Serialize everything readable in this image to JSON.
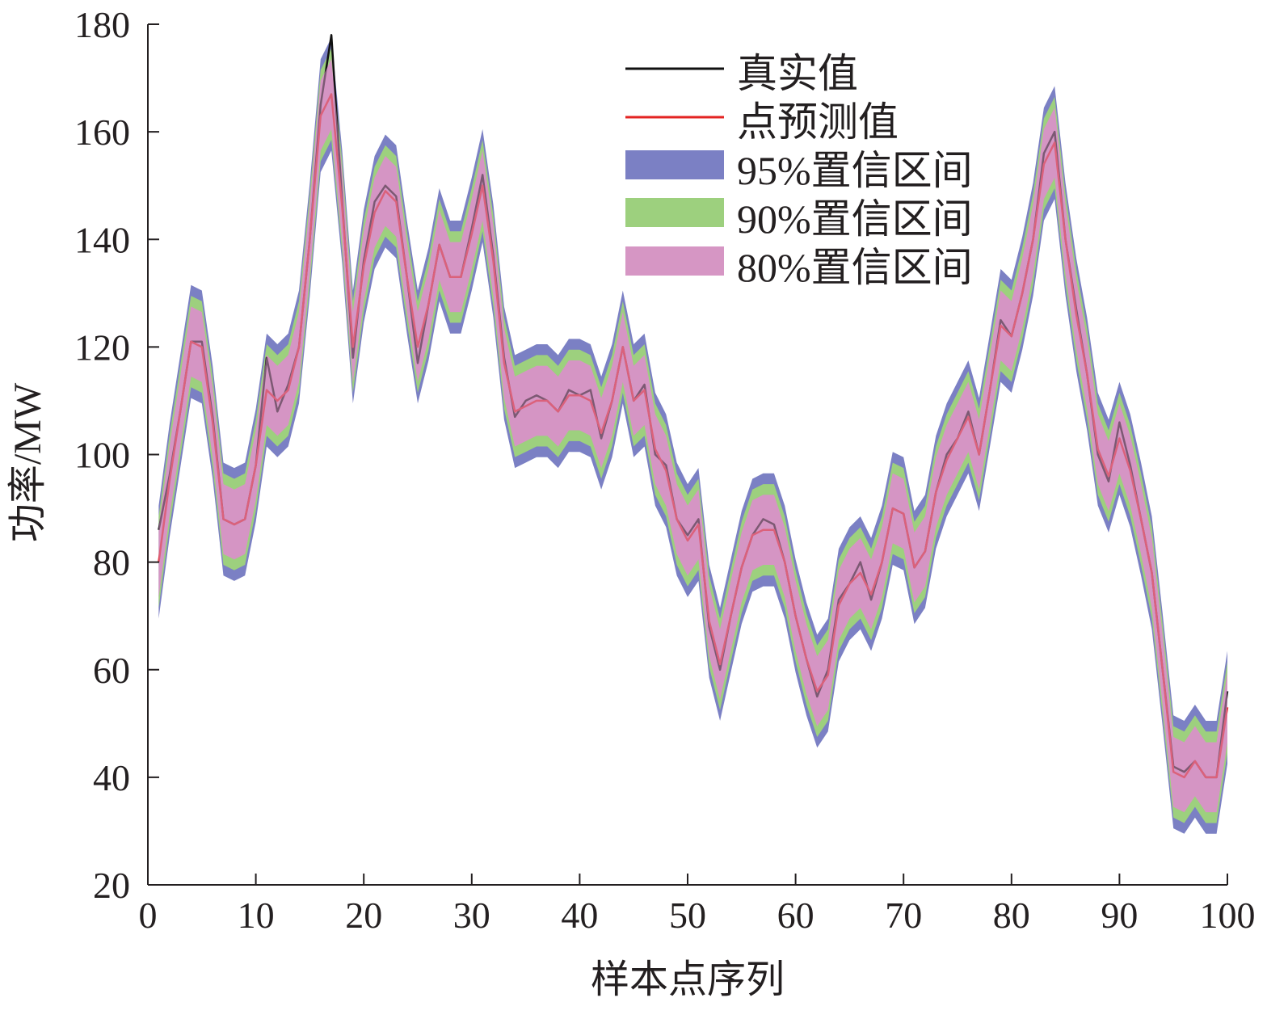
{
  "chart_data": {
    "type": "line",
    "title": "",
    "xlabel": "样本点序列",
    "ylabel": "功率/MW",
    "xlim": [
      0,
      100
    ],
    "ylim": [
      20,
      180
    ],
    "xticks": [
      0,
      10,
      20,
      30,
      40,
      50,
      60,
      70,
      80,
      90,
      100
    ],
    "yticks": [
      20,
      40,
      60,
      80,
      100,
      120,
      140,
      160,
      180
    ],
    "grid": false,
    "legend_position": "top-right",
    "colors": {
      "actual": "#111111",
      "predicted": "#e32322",
      "band95": "#7b80c4",
      "band90": "#9dd07e",
      "band80": "#d696c4"
    },
    "x": [
      1,
      2,
      3,
      4,
      5,
      6,
      7,
      8,
      9,
      10,
      11,
      12,
      13,
      14,
      15,
      16,
      17,
      18,
      19,
      20,
      21,
      22,
      23,
      24,
      25,
      26,
      27,
      28,
      29,
      30,
      31,
      32,
      33,
      34,
      35,
      36,
      37,
      38,
      39,
      40,
      41,
      42,
      43,
      44,
      45,
      46,
      47,
      48,
      49,
      50,
      51,
      52,
      53,
      54,
      55,
      56,
      57,
      58,
      59,
      60,
      61,
      62,
      63,
      64,
      65,
      66,
      67,
      68,
      69,
      70,
      71,
      72,
      73,
      74,
      75,
      76,
      77,
      78,
      79,
      80,
      81,
      82,
      83,
      84,
      85,
      86,
      87,
      88,
      89,
      90,
      91,
      92,
      93,
      94,
      95,
      96,
      97,
      98,
      99,
      100
    ],
    "series": [
      {
        "name": "真实值",
        "values": [
          86,
          96,
          108,
          121,
          121,
          107,
          88,
          87,
          88,
          98,
          118,
          108,
          113,
          120,
          140,
          165,
          178,
          147,
          118,
          136,
          147,
          150,
          148,
          133,
          117,
          128,
          139,
          133,
          133,
          142,
          152,
          137,
          118,
          107,
          110,
          111,
          110,
          108,
          112,
          111,
          112,
          103,
          110,
          120,
          110,
          113,
          100,
          98,
          88,
          85,
          88,
          68,
          60,
          70,
          79,
          85,
          88,
          87,
          80,
          70,
          62,
          55,
          60,
          73,
          76,
          80,
          73,
          80,
          90,
          89,
          79,
          82,
          93,
          100,
          103,
          108,
          100,
          112,
          125,
          122,
          130,
          140,
          156,
          160,
          140,
          127,
          115,
          100,
          95,
          106,
          98,
          88,
          78,
          60,
          42,
          41,
          43,
          40,
          40,
          56
        ],
        "data_labels": []
      },
      {
        "name": "点预测值",
        "values": [
          80,
          95,
          108,
          121,
          120,
          106,
          88,
          87,
          88,
          98,
          112,
          110,
          112,
          120,
          140,
          163,
          167,
          146,
          120,
          135,
          145,
          149,
          147,
          133,
          120,
          128,
          139,
          133,
          133,
          141,
          150,
          136,
          117,
          108,
          109,
          110,
          110,
          108,
          111,
          111,
          110,
          104,
          110,
          120,
          110,
          112,
          101,
          97,
          88,
          84,
          87,
          69,
          61,
          70,
          79,
          85,
          86,
          86,
          80,
          70,
          62,
          56,
          59,
          72,
          76,
          78,
          74,
          80,
          90,
          89,
          79,
          82,
          93,
          99,
          103,
          107,
          100,
          112,
          124,
          122,
          130,
          140,
          154,
          158,
          140,
          126,
          115,
          101,
          96,
          103,
          97,
          88,
          78,
          60,
          41,
          40,
          43,
          40,
          40,
          53
        ],
        "data_labels": []
      }
    ],
    "bands": [
      {
        "name": "95%置信区间",
        "level": 95,
        "halfwidth": 10.5
      },
      {
        "name": "90%置信区间",
        "level": 90,
        "halfwidth": 8.5
      },
      {
        "name": "80%置信区间",
        "level": 80,
        "halfwidth": 6.5
      }
    ]
  }
}
